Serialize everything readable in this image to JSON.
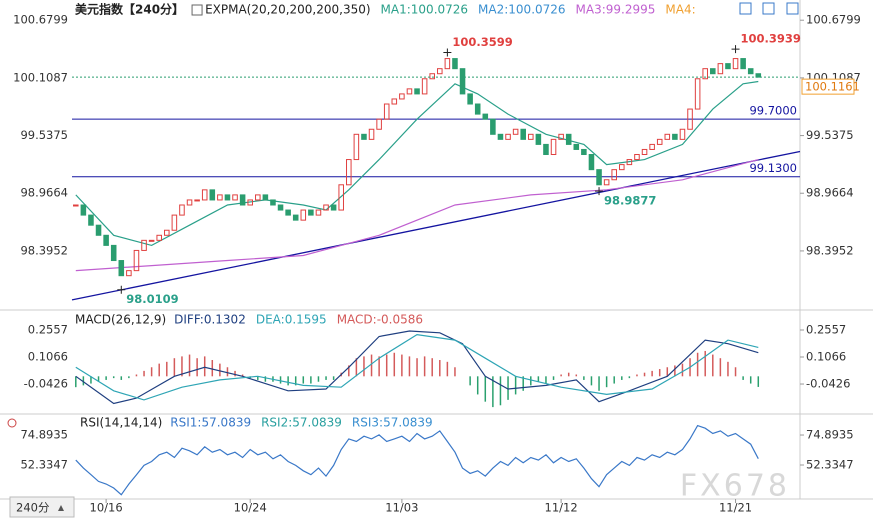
{
  "chart_data": [
    {
      "type": "candlestick",
      "title": "美元指数【240分】",
      "indicator": "EXPMA(20,20,200,200,350)",
      "xlim": [
        -0.5,
        95.5
      ],
      "ylim": [
        97.83,
        100.88
      ],
      "yticks": [
        98.3952,
        98.9664,
        99.5375,
        100.1087,
        100.6799
      ],
      "xticks": [
        {
          "value": 4,
          "label": "10/16"
        },
        {
          "value": 23,
          "label": "10/24"
        },
        {
          "value": 43,
          "label": "11/03"
        },
        {
          "value": 64,
          "label": "11/12"
        },
        {
          "value": 87,
          "label": "11/21"
        }
      ],
      "up_color": "#e0403f",
      "down_color": "#2a9d6f",
      "close": [
        98.85,
        98.75,
        98.65,
        98.55,
        98.45,
        98.3,
        98.15,
        98.2,
        98.4,
        98.5,
        98.5,
        98.55,
        98.6,
        98.75,
        98.85,
        98.9,
        98.9,
        99.0,
        98.9,
        98.95,
        98.9,
        98.95,
        98.85,
        98.9,
        98.95,
        98.9,
        98.85,
        98.8,
        98.75,
        98.7,
        98.8,
        98.75,
        98.8,
        98.85,
        98.8,
        99.05,
        99.3,
        99.55,
        99.5,
        99.6,
        99.7,
        99.85,
        99.9,
        99.95,
        100.0,
        99.95,
        100.1,
        100.15,
        100.2,
        100.3,
        100.2,
        99.95,
        99.85,
        99.75,
        99.7,
        99.55,
        99.5,
        99.55,
        99.6,
        99.5,
        99.55,
        99.45,
        99.35,
        99.5,
        99.55,
        99.45,
        99.4,
        99.35,
        99.2,
        99.05,
        99.1,
        99.2,
        99.25,
        99.3,
        99.35,
        99.4,
        99.45,
        99.5,
        99.55,
        99.5,
        99.6,
        99.8,
        100.1,
        100.2,
        100.15,
        100.25,
        100.2,
        100.3,
        100.2,
        100.15,
        100.1161
      ],
      "series": [
        {
          "name": "MA1:100.0726",
          "color": "#2aa08a",
          "x": [
            0,
            5,
            10,
            15,
            20,
            25,
            30,
            33,
            36,
            40,
            45,
            50,
            53,
            57,
            62,
            67,
            70,
            75,
            80,
            84,
            88,
            90
          ],
          "values": [
            98.95,
            98.55,
            98.45,
            98.65,
            98.85,
            98.9,
            98.85,
            98.8,
            99.0,
            99.3,
            99.7,
            100.05,
            99.95,
            99.75,
            99.55,
            99.45,
            99.25,
            99.3,
            99.45,
            99.8,
            100.05,
            100.0726
          ]
        },
        {
          "name": "MA2:100.0726",
          "color": "#3a8fd0"
        },
        {
          "name": "MA3:99.2995",
          "color": "#c060d0",
          "x": [
            0,
            10,
            20,
            30,
            40,
            50,
            60,
            70,
            80,
            90
          ],
          "values": [
            98.2,
            98.25,
            98.3,
            98.35,
            98.55,
            98.85,
            98.95,
            99.0,
            99.1,
            99.2995
          ]
        },
        {
          "name": "MA4:",
          "color": "#f0a030"
        }
      ],
      "levels": [
        {
          "value": 99.7,
          "label": "99.7000"
        },
        {
          "value": 99.13,
          "label": "99.1300"
        }
      ],
      "level_color": "#1414a0",
      "trendline": {
        "x": [
          -0.5,
          95.5
        ],
        "values": [
          97.91,
          99.38
        ]
      },
      "annotations": [
        {
          "x": 6,
          "value": 98.0109,
          "color": "#2aa08a"
        },
        {
          "x": 49,
          "value": 100.3599,
          "color": "#e0403f"
        },
        {
          "x": 69,
          "value": 98.9877,
          "color": "#2aa08a"
        },
        {
          "x": 87,
          "value": 100.3939,
          "color": "#e0403f"
        }
      ],
      "timeframe": "240分",
      "watermark": "FX678"
    },
    {
      "type": "macd",
      "title": "MACD(26,12,9)",
      "xlim": [
        -0.5,
        95.5
      ],
      "ylim": [
        -0.197,
        0.355
      ],
      "yticks": [
        -0.0426,
        0.1066,
        0.2557
      ],
      "series": [
        {
          "name": "DIFF:0.1302",
          "color": "#1f3f80",
          "x": [
            0,
            5,
            8,
            13,
            17,
            22,
            28,
            33,
            36,
            40,
            44,
            48,
            51,
            54,
            57,
            62,
            66,
            69,
            73,
            78,
            83,
            86,
            90
          ],
          "values": [
            0.0,
            -0.15,
            -0.12,
            0.0,
            0.05,
            0.0,
            -0.08,
            -0.07,
            0.05,
            0.22,
            0.25,
            0.24,
            0.18,
            0.0,
            -0.07,
            -0.05,
            -0.02,
            -0.14,
            -0.08,
            0.0,
            0.2,
            0.18,
            0.1302
          ]
        },
        {
          "name": "DEA:0.1595",
          "color": "#2ea5b5",
          "x": [
            0,
            5,
            9,
            14,
            19,
            24,
            30,
            35,
            40,
            45,
            50,
            54,
            58,
            64,
            70,
            76,
            81,
            86,
            90
          ],
          "values": [
            0.05,
            -0.08,
            -0.13,
            -0.06,
            -0.02,
            0.0,
            -0.05,
            -0.06,
            0.1,
            0.23,
            0.2,
            0.1,
            0.0,
            -0.06,
            -0.1,
            -0.07,
            0.05,
            0.2,
            0.1595
          ]
        },
        {
          "name": "MACD:-0.0586",
          "color": "#d45a5a",
          "neg_color": "#2aa06e",
          "values": [
            -0.06,
            -0.05,
            -0.04,
            -0.03,
            -0.02,
            -0.01,
            -0.02,
            -0.01,
            0.01,
            0.03,
            0.05,
            0.07,
            0.08,
            0.1,
            0.11,
            0.12,
            0.1,
            0.11,
            0.09,
            0.07,
            0.05,
            0.03,
            0.01,
            -0.01,
            -0.02,
            -0.03,
            -0.03,
            -0.04,
            -0.05,
            -0.05,
            -0.04,
            -0.04,
            -0.03,
            -0.02,
            -0.02,
            0.02,
            0.06,
            0.1,
            0.11,
            0.12,
            0.11,
            0.12,
            0.13,
            0.12,
            0.11,
            0.1,
            0.11,
            0.1,
            0.09,
            0.08,
            0.05,
            0,
            -0.05,
            -0.1,
            -0.14,
            -0.17,
            -0.16,
            -0.13,
            -0.1,
            -0.08,
            -0.05,
            -0.03,
            -0.04,
            -0.02,
            0.01,
            0.02,
            0.01,
            -0.02,
            -0.05,
            -0.08,
            -0.06,
            -0.04,
            -0.02,
            -0.01,
            0.01,
            0.02,
            0.03,
            0.04,
            0.05,
            0.06,
            0.07,
            0.1,
            0.13,
            0.14,
            0.12,
            0.1,
            0.08,
            0.05,
            -0.02,
            -0.04,
            -0.0586
          ]
        }
      ]
    },
    {
      "type": "line",
      "title": "RSI(14,14,14)",
      "xlim": [
        -0.5,
        95.5
      ],
      "ylim": [
        27.5,
        87.7
      ],
      "yticks": [
        52.3347,
        74.8935
      ],
      "series": [
        {
          "name": "RSI1:57.0839",
          "color": "#3a78c8",
          "values": [
            56,
            50,
            45,
            40,
            38,
            35,
            30,
            38,
            45,
            52,
            55,
            60,
            62,
            58,
            65,
            63,
            60,
            66,
            62,
            64,
            60,
            62,
            58,
            64,
            60,
            62,
            57,
            60,
            55,
            52,
            48,
            45,
            50,
            44,
            52,
            64,
            72,
            70,
            74,
            72,
            75,
            70,
            72,
            74,
            70,
            76,
            72,
            74,
            78,
            70,
            62,
            50,
            46,
            48,
            44,
            50,
            55,
            52,
            58,
            54,
            58,
            56,
            60,
            54,
            58,
            55,
            57,
            50,
            42,
            36,
            45,
            50,
            55,
            52,
            58,
            56,
            60,
            58,
            62,
            60,
            64,
            72,
            82,
            80,
            76,
            78,
            74,
            76,
            72,
            68,
            57.0839
          ]
        },
        {
          "name": "RSI2:57.0839",
          "color": "#2aa0a0"
        },
        {
          "name": "RSI3:57.0839",
          "color": "#3a8fd0"
        }
      ]
    }
  ]
}
